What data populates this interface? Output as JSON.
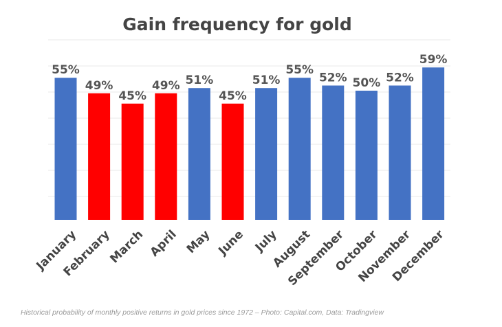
{
  "chart_data": {
    "type": "bar",
    "title": "Gain frequency for gold",
    "categories": [
      "January",
      "February",
      "March",
      "April",
      "May",
      "June",
      "July",
      "August",
      "September",
      "October",
      "November",
      "December"
    ],
    "values": [
      55,
      49,
      45,
      49,
      51,
      45,
      51,
      55,
      52,
      50,
      52,
      59
    ],
    "value_labels": [
      "55%",
      "49%",
      "45%",
      "49%",
      "51%",
      "45%",
      "51%",
      "55%",
      "52%",
      "50%",
      "52%",
      "59%"
    ],
    "bar_colors": [
      "#4472c4",
      "#ff0000",
      "#ff0000",
      "#ff0000",
      "#4472c4",
      "#ff0000",
      "#4472c4",
      "#4472c4",
      "#4472c4",
      "#4472c4",
      "#4472c4",
      "#4472c4"
    ],
    "colors": {
      "above_50": "#4472c4",
      "below_50": "#ff0000"
    },
    "xlabel": "",
    "ylabel": "",
    "grid": true,
    "legend": "none"
  },
  "caption": "Historical probability of monthly positive returns in gold prices since 1972 – Photo: Capital.com, Data: Tradingview"
}
